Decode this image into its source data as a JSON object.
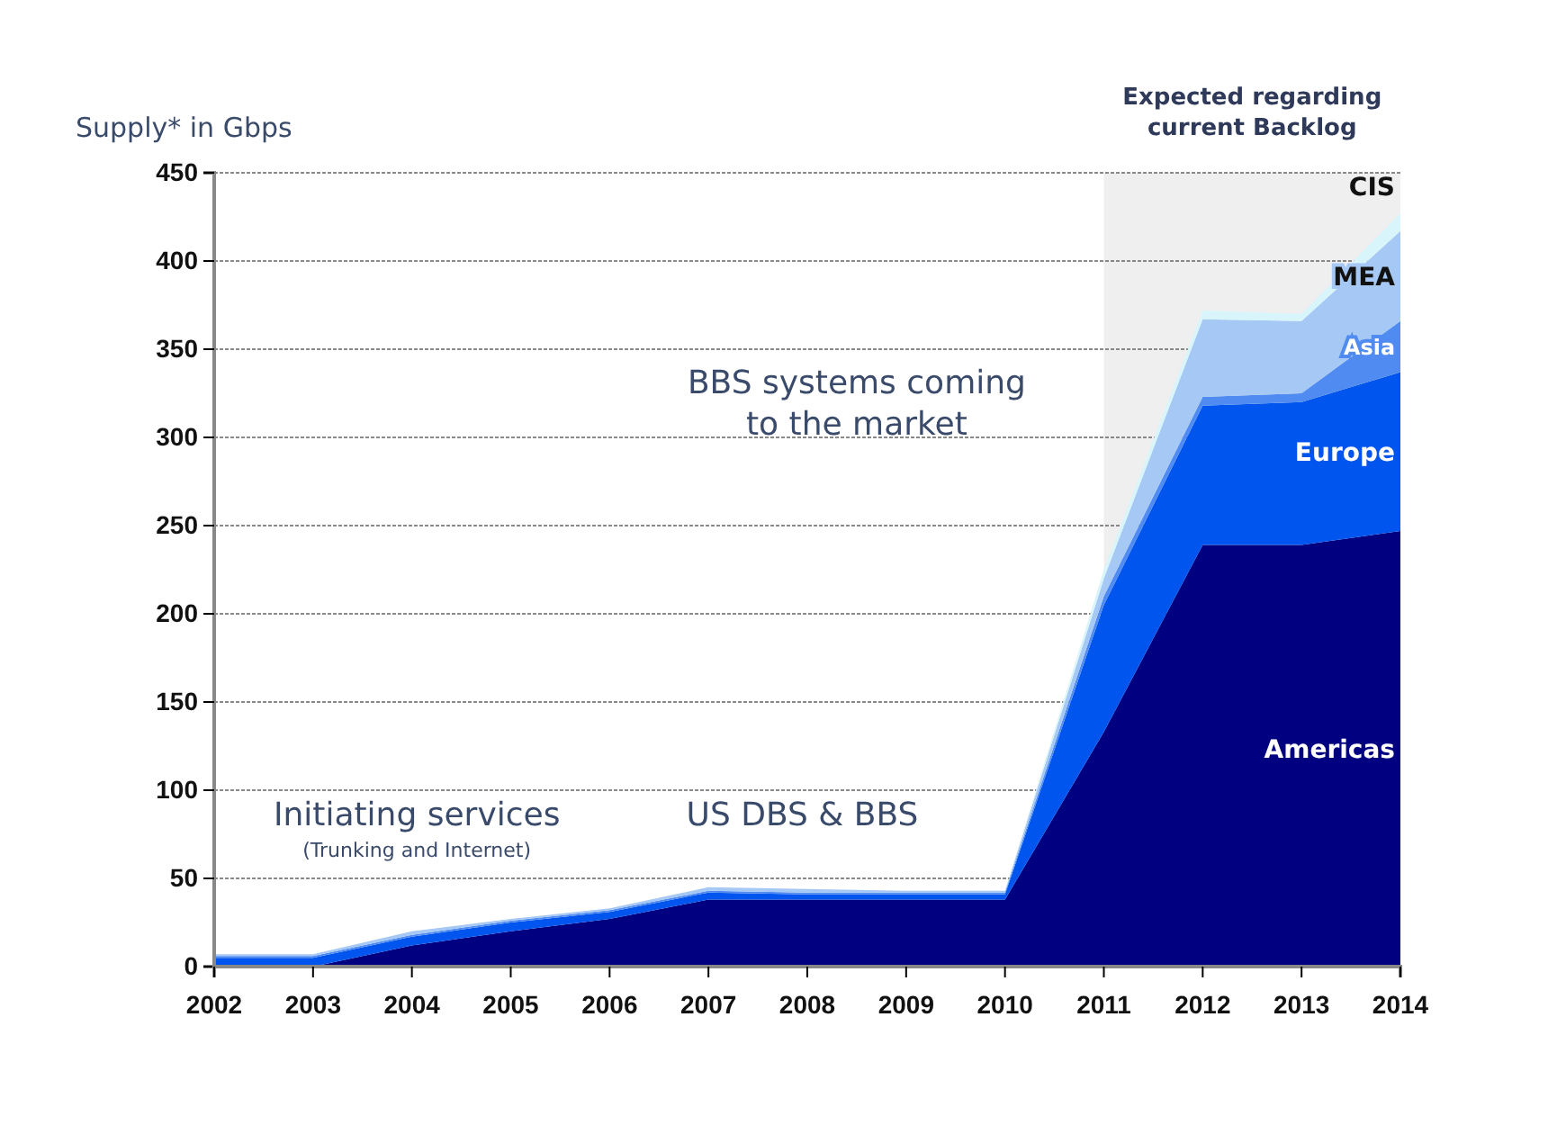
{
  "chart_data": {
    "type": "area",
    "stacked": true,
    "ylabel": "Supply* in Gbps",
    "x": [
      2002,
      2003,
      2004,
      2005,
      2006,
      2007,
      2008,
      2009,
      2010,
      2011,
      2012,
      2013,
      2014
    ],
    "xlim": [
      2002,
      2014
    ],
    "xticks": [
      2002,
      2003,
      2004,
      2005,
      2006,
      2007,
      2008,
      2009,
      2010,
      2011,
      2012,
      2013,
      2014
    ],
    "ylim": [
      0,
      450
    ],
    "yticks": [
      0,
      50,
      100,
      150,
      200,
      250,
      300,
      350,
      400,
      450
    ],
    "grid": "y",
    "series": [
      {
        "name": "Americas",
        "color": "#000080",
        "values": [
          0,
          0,
          12,
          20,
          27,
          38,
          38,
          38,
          38,
          133,
          239,
          239,
          247
        ]
      },
      {
        "name": "Europe",
        "color": "#0055ee",
        "values": [
          5,
          5,
          5,
          5,
          4,
          4,
          3,
          3,
          3,
          72,
          79,
          81,
          90
        ]
      },
      {
        "name": "Asia",
        "color": "#4f8bf0",
        "values": [
          1,
          1,
          1,
          1,
          1,
          1,
          1,
          1,
          1,
          5,
          5,
          5,
          29
        ]
      },
      {
        "name": "MEA",
        "color": "#a6c8f5",
        "values": [
          1,
          1,
          2,
          1,
          1,
          2,
          2,
          1,
          1,
          10,
          44,
          41,
          51
        ]
      },
      {
        "name": "CIS",
        "color": "#d8f5fb",
        "values": [
          0,
          0,
          0,
          0,
          0,
          0,
          0,
          0,
          0,
          5,
          5,
          4,
          10
        ]
      }
    ],
    "bands": [
      {
        "axis": "x",
        "from": 2011,
        "to": 2014,
        "label": "Expected regarding current Backlog",
        "color": "#efefef"
      }
    ],
    "annotations": [
      "BBS systems coming to the market",
      "Initiating services",
      "(Trunking and Internet)",
      "US DBS & BBS"
    ]
  }
}
